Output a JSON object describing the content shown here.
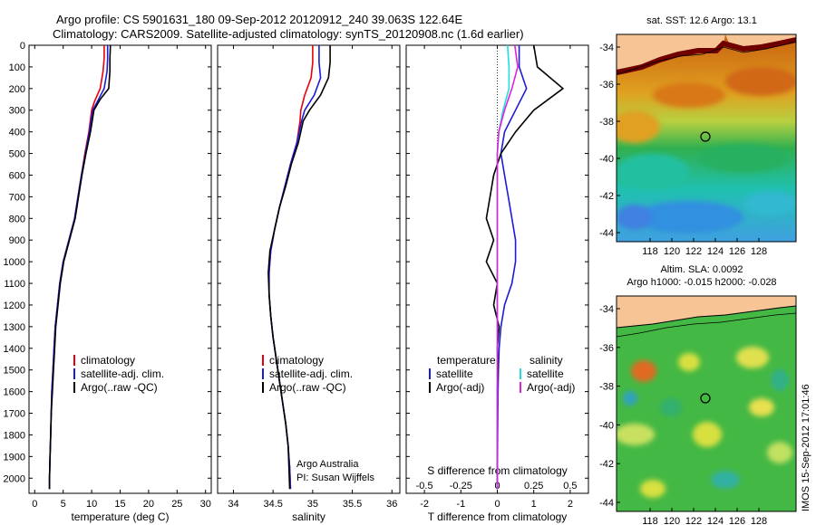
{
  "header": {
    "line1": "Argo profile: CS 5901631_180 09-Sep-2012 20120912_240 39.063S 122.64E",
    "line2": "Climatology: CARS2009. Satellite-adjusted climatology: synTS_20120908.nc (1.6d earlier)"
  },
  "colors": {
    "climatology": "#e8000b",
    "satellite": "#1c1cd8",
    "argo": "#000000",
    "cyan": "#22dddd",
    "magenta": "#dd22dd"
  },
  "footer": {
    "side_label": "IMOS 15-Sep-2012 17:01:46",
    "argo_australia": "Argo Australia",
    "pi": "PI: Susan Wijffels"
  },
  "chart_data": [
    {
      "type": "line",
      "id": "temperature",
      "xlabel": "temperature (deg C)",
      "ylabel": "",
      "xlim": [
        -1,
        31
      ],
      "ylim": [
        2070,
        0
      ],
      "xticks": [
        0,
        5,
        10,
        15,
        20,
        25,
        30
      ],
      "yticks": [
        0,
        100,
        200,
        300,
        400,
        500,
        600,
        700,
        800,
        900,
        1000,
        1100,
        1200,
        1300,
        1400,
        1500,
        1600,
        1700,
        1800,
        1900,
        2000
      ],
      "legend": [
        "climatology",
        "satellite-adj. clim.",
        "Argo(..raw -QC)"
      ],
      "series": [
        {
          "name": "climatology",
          "color": "#e8000b",
          "points": [
            [
              12.2,
              0
            ],
            [
              12.2,
              60
            ],
            [
              12.0,
              120
            ],
            [
              11.5,
              200
            ],
            [
              10.5,
              260
            ],
            [
              10.0,
              300
            ],
            [
              9.5,
              400
            ],
            [
              8.8,
              500
            ],
            [
              8.2,
              600
            ],
            [
              7.6,
              700
            ],
            [
              7.0,
              800
            ],
            [
              6.0,
              900
            ],
            [
              5.0,
              1000
            ],
            [
              4.4,
              1100
            ],
            [
              4.0,
              1200
            ],
            [
              3.6,
              1300
            ],
            [
              3.4,
              1400
            ],
            [
              3.2,
              1500
            ],
            [
              3.0,
              1600
            ],
            [
              2.9,
              1700
            ],
            [
              2.8,
              1800
            ],
            [
              2.7,
              1900
            ],
            [
              2.6,
              2000
            ],
            [
              2.6,
              2050
            ]
          ]
        },
        {
          "name": "satellite-adj. clim.",
          "color": "#1c1cd8",
          "points": [
            [
              12.8,
              0
            ],
            [
              12.8,
              60
            ],
            [
              12.7,
              120
            ],
            [
              12.2,
              200
            ],
            [
              11.0,
              260
            ],
            [
              10.2,
              300
            ],
            [
              9.6,
              400
            ],
            [
              8.9,
              500
            ],
            [
              8.2,
              600
            ],
            [
              7.6,
              700
            ],
            [
              7.0,
              800
            ],
            [
              6.0,
              900
            ],
            [
              5.0,
              1000
            ],
            [
              4.4,
              1100
            ],
            [
              4.0,
              1200
            ],
            [
              3.6,
              1300
            ],
            [
              3.4,
              1400
            ],
            [
              3.2,
              1500
            ],
            [
              3.0,
              1600
            ],
            [
              2.9,
              1700
            ],
            [
              2.8,
              1800
            ],
            [
              2.7,
              1900
            ],
            [
              2.6,
              2000
            ],
            [
              2.6,
              2050
            ]
          ]
        },
        {
          "name": "Argo(..raw -QC)",
          "color": "#000000",
          "points": [
            [
              13.3,
              0
            ],
            [
              13.2,
              60
            ],
            [
              13.2,
              120
            ],
            [
              13.0,
              200
            ],
            [
              11.5,
              250
            ],
            [
              10.4,
              300
            ],
            [
              9.8,
              400
            ],
            [
              9.0,
              500
            ],
            [
              8.3,
              600
            ],
            [
              7.7,
              700
            ],
            [
              7.1,
              800
            ],
            [
              6.1,
              900
            ],
            [
              5.1,
              1000
            ],
            [
              4.5,
              1100
            ],
            [
              4.1,
              1200
            ],
            [
              3.7,
              1300
            ],
            [
              3.5,
              1400
            ],
            [
              3.3,
              1500
            ],
            [
              3.1,
              1600
            ],
            [
              2.9,
              1700
            ],
            [
              2.8,
              1800
            ],
            [
              2.7,
              1900
            ],
            [
              2.6,
              2000
            ],
            [
              2.6,
              2050
            ]
          ]
        }
      ]
    },
    {
      "type": "line",
      "id": "salinity",
      "xlabel": "salinity",
      "ylabel": "",
      "xlim": [
        33.8,
        36.1
      ],
      "ylim": [
        2070,
        0
      ],
      "xticks": [
        34,
        34.5,
        35,
        35.5,
        36
      ],
      "legend": [
        "climatology",
        "satellite-adj. clim.",
        "Argo(..raw -QC)"
      ],
      "series": [
        {
          "name": "climatology",
          "color": "#e8000b",
          "points": [
            [
              35.0,
              0
            ],
            [
              35.0,
              80
            ],
            [
              34.98,
              150
            ],
            [
              34.9,
              230
            ],
            [
              34.85,
              300
            ],
            [
              34.84,
              350
            ],
            [
              34.8,
              450
            ],
            [
              34.72,
              550
            ],
            [
              34.65,
              650
            ],
            [
              34.58,
              750
            ],
            [
              34.52,
              850
            ],
            [
              34.47,
              950
            ],
            [
              34.45,
              1050
            ],
            [
              34.45,
              1150
            ],
            [
              34.47,
              1250
            ],
            [
              34.5,
              1350
            ],
            [
              34.54,
              1450
            ],
            [
              34.58,
              1550
            ],
            [
              34.62,
              1650
            ],
            [
              34.66,
              1750
            ],
            [
              34.69,
              1850
            ],
            [
              34.71,
              1950
            ],
            [
              34.72,
              2050
            ]
          ]
        },
        {
          "name": "satellite-adj. clim.",
          "color": "#1c1cd8",
          "points": [
            [
              35.08,
              0
            ],
            [
              35.08,
              80
            ],
            [
              35.1,
              150
            ],
            [
              35.02,
              230
            ],
            [
              34.9,
              300
            ],
            [
              34.86,
              350
            ],
            [
              34.8,
              450
            ],
            [
              34.72,
              550
            ],
            [
              34.65,
              650
            ],
            [
              34.58,
              750
            ],
            [
              34.52,
              850
            ],
            [
              34.47,
              950
            ],
            [
              34.45,
              1050
            ],
            [
              34.45,
              1150
            ],
            [
              34.47,
              1250
            ],
            [
              34.5,
              1350
            ],
            [
              34.54,
              1450
            ],
            [
              34.58,
              1550
            ],
            [
              34.62,
              1650
            ],
            [
              34.66,
              1750
            ],
            [
              34.69,
              1850
            ],
            [
              34.71,
              1950
            ],
            [
              34.72,
              2050
            ]
          ]
        },
        {
          "name": "Argo(..raw -QC)",
          "color": "#000000",
          "points": [
            [
              35.22,
              0
            ],
            [
              35.22,
              80
            ],
            [
              35.2,
              150
            ],
            [
              35.1,
              230
            ],
            [
              34.96,
              300
            ],
            [
              34.88,
              350
            ],
            [
              34.82,
              450
            ],
            [
              34.73,
              550
            ],
            [
              34.66,
              650
            ],
            [
              34.58,
              750
            ],
            [
              34.52,
              850
            ],
            [
              34.46,
              950
            ],
            [
              34.44,
              1050
            ],
            [
              34.45,
              1150
            ],
            [
              34.47,
              1250
            ],
            [
              34.5,
              1350
            ],
            [
              34.54,
              1450
            ],
            [
              34.58,
              1550
            ],
            [
              34.62,
              1650
            ],
            [
              34.66,
              1750
            ],
            [
              34.69,
              1850
            ],
            [
              34.7,
              1950
            ],
            [
              34.71,
              2050
            ]
          ]
        }
      ]
    },
    {
      "type": "line",
      "id": "difference",
      "xlabel": "T difference from climatology",
      "top_xlabel": "S difference from climatology",
      "xlim": [
        -2.5,
        2.5
      ],
      "top_xlim": [
        -0.625,
        0.625
      ],
      "ylim": [
        2070,
        0
      ],
      "xticks": [
        -2,
        -1,
        0,
        1,
        2
      ],
      "top_xticks": [
        -0.5,
        -0.25,
        0,
        0.25,
        0.5
      ],
      "legend_left_title": "temperature",
      "legend_right_title": "salinity",
      "legend": [
        "satellite",
        "Argo(-adj)",
        "satellite",
        "Argo(-adj)"
      ],
      "series": [
        {
          "name": "satellite",
          "color": "#1c1cd8",
          "axis": "T",
          "points": [
            [
              0.6,
              0
            ],
            [
              0.6,
              100
            ],
            [
              0.8,
              200
            ],
            [
              0.5,
              300
            ],
            [
              0.2,
              400
            ],
            [
              0.1,
              500
            ],
            [
              0.2,
              600
            ],
            [
              0.3,
              700
            ],
            [
              0.4,
              800
            ],
            [
              0.5,
              900
            ],
            [
              0.5,
              1000
            ],
            [
              0.4,
              1100
            ],
            [
              0.2,
              1200
            ],
            [
              0.1,
              1300
            ],
            [
              0.05,
              1400
            ],
            [
              0.03,
              1500
            ],
            [
              0.02,
              1600
            ],
            [
              0.01,
              1800
            ],
            [
              0.0,
              2050
            ]
          ]
        },
        {
          "name": "Argo(-adj)",
          "color": "#000000",
          "axis": "T",
          "points": [
            [
              1.0,
              0
            ],
            [
              1.1,
              100
            ],
            [
              1.8,
              200
            ],
            [
              1.0,
              300
            ],
            [
              0.5,
              400
            ],
            [
              0.1,
              500
            ],
            [
              -0.1,
              600
            ],
            [
              -0.2,
              700
            ],
            [
              -0.3,
              800
            ],
            [
              -0.1,
              900
            ],
            [
              -0.3,
              1000
            ],
            [
              0.0,
              1100
            ],
            [
              -0.1,
              1200
            ],
            [
              0.05,
              1300
            ],
            [
              0.0,
              1400
            ],
            [
              0.02,
              1500
            ],
            [
              0.0,
              1600
            ],
            [
              0.0,
              1800
            ],
            [
              0.0,
              2050
            ]
          ]
        },
        {
          "name": "satellite",
          "color": "#22dddd",
          "axis": "S",
          "points": [
            [
              0.07,
              0
            ],
            [
              0.08,
              100
            ],
            [
              0.08,
              200
            ],
            [
              0.04,
              300
            ],
            [
              0.01,
              400
            ],
            [
              0.0,
              500
            ],
            [
              0.0,
              700
            ],
            [
              0.0,
              1000
            ],
            [
              0.0,
              1500
            ],
            [
              0.0,
              2050
            ]
          ]
        },
        {
          "name": "Argo(-adj)",
          "color": "#dd22dd",
          "axis": "S",
          "points": [
            [
              0.12,
              0
            ],
            [
              0.14,
              100
            ],
            [
              0.1,
              200
            ],
            [
              0.05,
              300
            ],
            [
              0.01,
              400
            ],
            [
              0.0,
              500
            ],
            [
              0.0,
              700
            ],
            [
              0.0,
              1000
            ],
            [
              0.0,
              1500
            ],
            [
              0.0,
              2050
            ]
          ]
        }
      ]
    },
    {
      "type": "heatmap",
      "id": "sst_map",
      "title": "sat. SST: 12.6 Argo: 13.1",
      "xticks": [
        "118",
        "120",
        "122",
        "124",
        "126",
        "128"
      ],
      "yticks": [
        "-34",
        "-36",
        "-38",
        "-40",
        "-42",
        "-44"
      ],
      "argo_lon": 122.64,
      "argo_lat": -39.063
    },
    {
      "type": "heatmap",
      "id": "sla_map",
      "title_line1": "Altim. SLA: 0.0092",
      "title_line2": "Argo h1000: -0.015 h2000: -0.028",
      "xticks": [
        "118",
        "120",
        "122",
        "124",
        "126",
        "128"
      ],
      "yticks": [
        "-34",
        "-36",
        "-38",
        "-40",
        "-42",
        "-44"
      ],
      "argo_lon": 122.64,
      "argo_lat": -39.063
    }
  ]
}
